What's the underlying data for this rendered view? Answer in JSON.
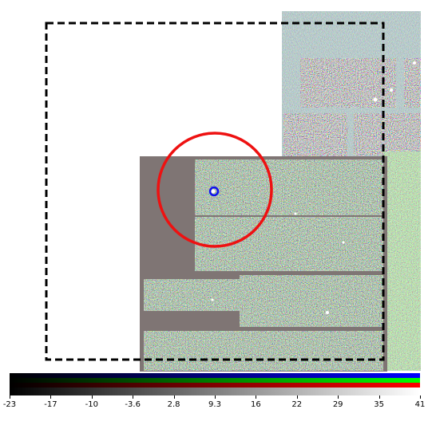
{
  "image_view": {
    "background_color": "#ffffff",
    "mosaic_base_color": "#7f7574",
    "noise_colors": [
      "#ffffff",
      "#60d060",
      "#8080ff",
      "#d08080",
      "#5a5a5a",
      "#c8c8c8",
      "#a070a0",
      "#40a040"
    ],
    "overlays": {
      "dashed_box": {
        "shape": "rectangle",
        "style": "dashed",
        "color": "#000000"
      },
      "large_circle": {
        "shape": "circle",
        "color": "#ee1111"
      },
      "small_circle": {
        "shape": "circle",
        "color": "#1111ee"
      }
    }
  },
  "colorbar": {
    "channels": [
      {
        "name": "blue",
        "color": "#0000ff"
      },
      {
        "name": "green",
        "color": "#00ff00"
      },
      {
        "name": "red",
        "color": "#ff0000"
      }
    ],
    "tick_labels": [
      "-23",
      "-17",
      "-10",
      "-3.6",
      "2.8",
      "9.3",
      "16",
      "22",
      "29",
      "35",
      "41"
    ]
  }
}
